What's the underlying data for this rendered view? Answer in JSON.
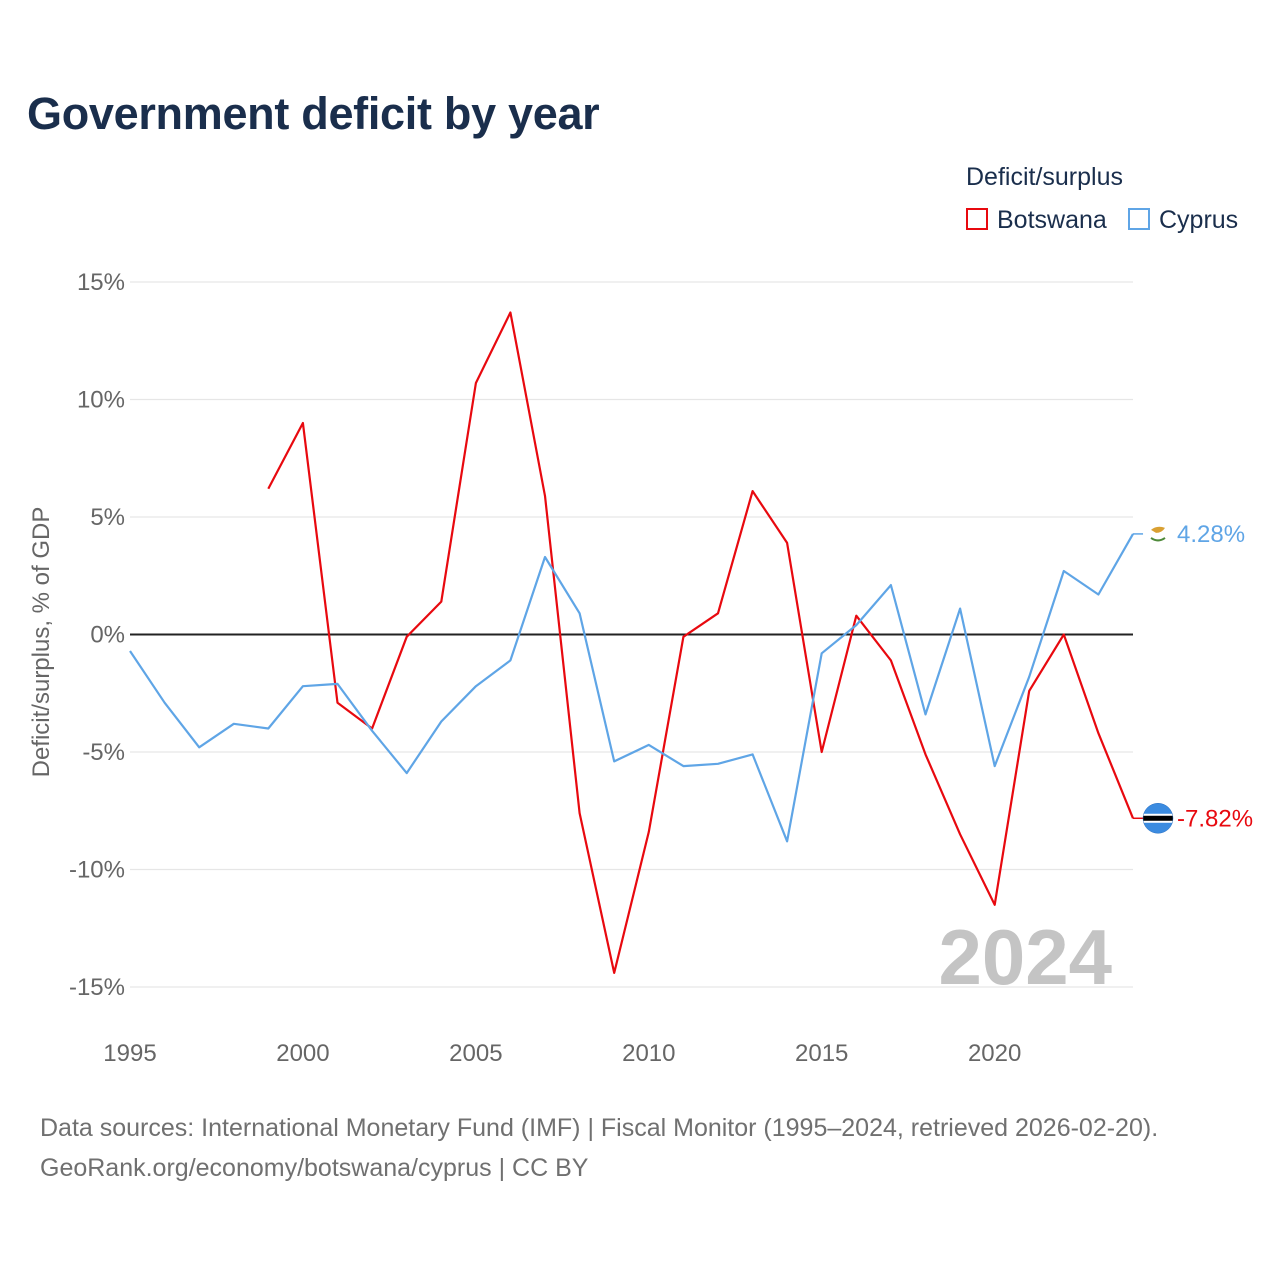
{
  "title": "Government deficit by year",
  "legend": {
    "title": "Deficit/surplus",
    "items": [
      {
        "name": "Botswana",
        "color": "#e8090f"
      },
      {
        "name": "Cyprus",
        "color": "#5fa5e6"
      }
    ]
  },
  "chart_data": {
    "type": "line",
    "title": "Government deficit by year",
    "xlabel": "",
    "ylabel": "Deficit/surplus, % of GDP",
    "xlim": [
      1995,
      2024
    ],
    "ylim": [
      -15,
      15
    ],
    "x_ticks": [
      1995,
      2000,
      2005,
      2010,
      2015,
      2020
    ],
    "y_ticks": [
      {
        "value": 15,
        "label": "15%"
      },
      {
        "value": 10,
        "label": "10%"
      },
      {
        "value": 5,
        "label": "5%"
      },
      {
        "value": 0,
        "label": "0%"
      },
      {
        "value": -5,
        "label": "-5%"
      },
      {
        "value": -10,
        "label": "-10%"
      },
      {
        "value": -15,
        "label": "-15%"
      }
    ],
    "current_year_label": "2024",
    "series": [
      {
        "name": "Botswana",
        "color": "#e8090f",
        "end_label": "-7.82%",
        "flag": "botswana-flag-icon",
        "x": [
          1999,
          2000,
          2001,
          2002,
          2003,
          2004,
          2005,
          2006,
          2007,
          2008,
          2009,
          2010,
          2011,
          2012,
          2013,
          2014,
          2015,
          2016,
          2017,
          2018,
          2019,
          2020,
          2021,
          2022,
          2023,
          2024
        ],
        "values": [
          6.2,
          9.0,
          -2.9,
          -4.0,
          -0.1,
          1.4,
          10.7,
          13.7,
          5.9,
          -7.6,
          -14.4,
          -8.4,
          -0.1,
          0.9,
          6.1,
          3.9,
          -5.0,
          0.8,
          -1.1,
          -5.1,
          -8.5,
          -11.5,
          -2.4,
          0.0,
          -4.2,
          -7.82
        ]
      },
      {
        "name": "Cyprus",
        "color": "#5fa5e6",
        "end_label": "4.28%",
        "flag": "cyprus-flag-icon",
        "x": [
          1995,
          1996,
          1997,
          1998,
          1999,
          2000,
          2001,
          2002,
          2003,
          2004,
          2005,
          2006,
          2007,
          2008,
          2009,
          2010,
          2011,
          2012,
          2013,
          2014,
          2015,
          2016,
          2017,
          2018,
          2019,
          2020,
          2021,
          2022,
          2023,
          2024
        ],
        "values": [
          -0.7,
          -2.9,
          -4.8,
          -3.8,
          -4.0,
          -2.2,
          -2.1,
          -4.1,
          -5.9,
          -3.7,
          -2.2,
          -1.1,
          3.3,
          0.9,
          -5.4,
          -4.7,
          -5.6,
          -5.5,
          -5.1,
          -8.8,
          -0.8,
          0.4,
          2.1,
          -3.4,
          1.1,
          -5.6,
          -1.8,
          2.7,
          1.7,
          4.28
        ]
      }
    ]
  },
  "sources": {
    "line1": "Data sources: International Monetary Fund (IMF) | Fiscal Monitor (1995–2024, retrieved 2026-02-20).",
    "line2": "GeoRank.org/economy/botswana/cyprus | CC BY"
  }
}
